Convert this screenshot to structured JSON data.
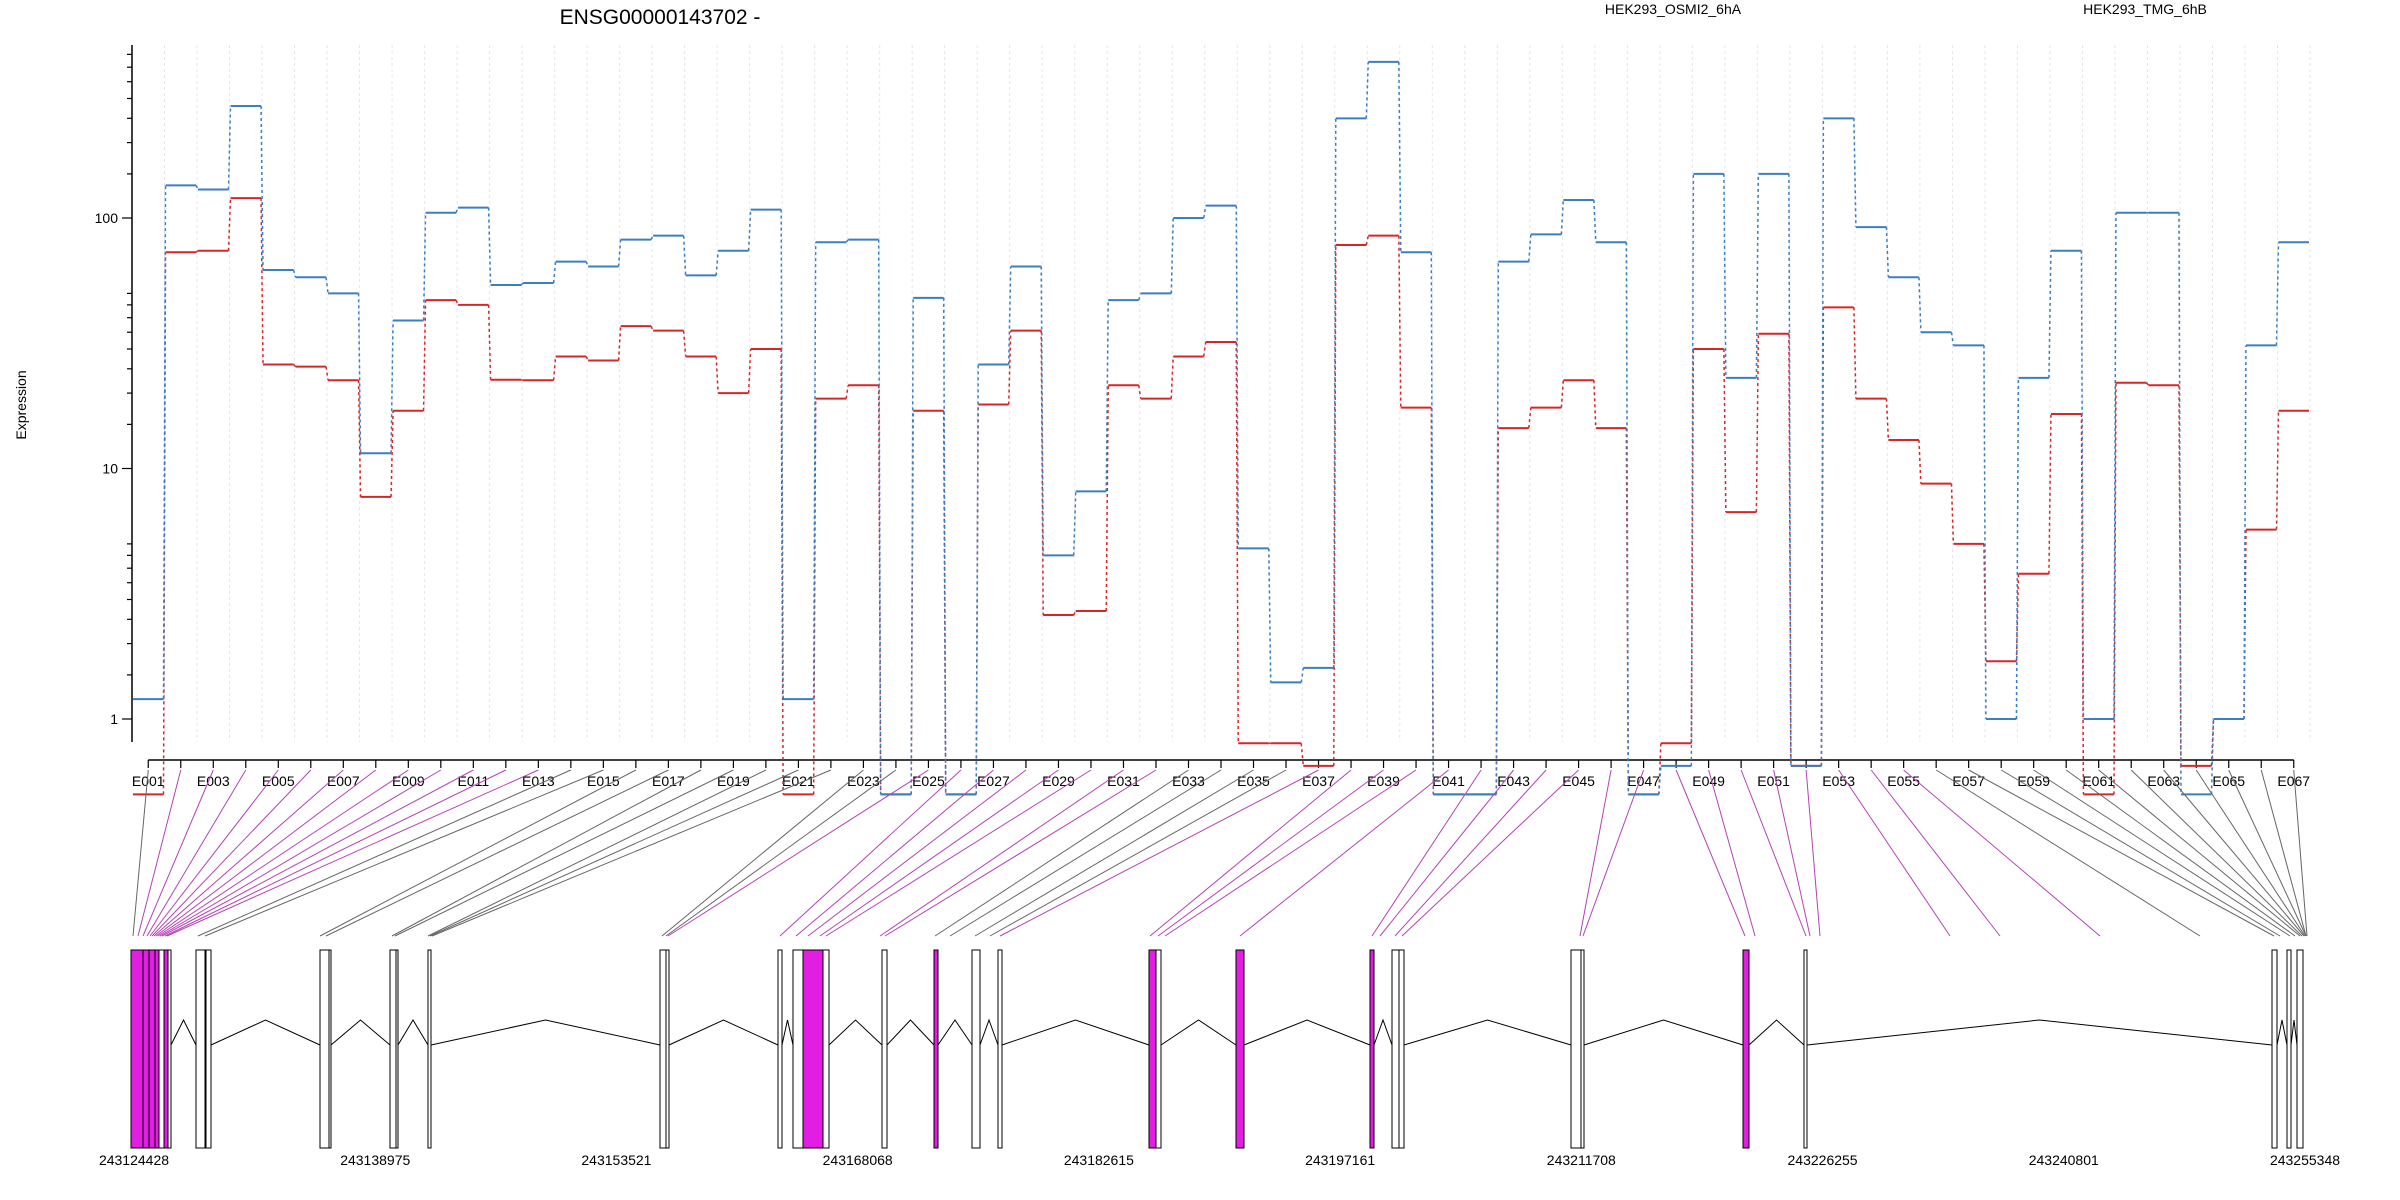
{
  "chart_data": {
    "type": "line",
    "title": "ENSG00000143702 -",
    "ylabel": "Expression",
    "y_scale": "log",
    "y_ticks": [
      "1",
      "10",
      "100"
    ],
    "colors": {
      "HEK293_OSMI2_6hA": "#d62728",
      "HEK293_TMG_6hB": "#3b7ec1",
      "highlight": "#e31ee3"
    },
    "legend": [
      {
        "name": "HEK293_OSMI2_6hA",
        "color": "#d62728"
      },
      {
        "name": "HEK293_TMG_6hB",
        "color": "#3b7ec1"
      }
    ],
    "x_tick_labels": [
      "E001",
      "E003",
      "E005",
      "E007",
      "E009",
      "E011",
      "E013",
      "E015",
      "E017",
      "E019",
      "E021",
      "E023",
      "E025",
      "E027",
      "E029",
      "E031",
      "E033",
      "E035",
      "E037",
      "E039",
      "E041",
      "E043",
      "E045",
      "E047",
      "E049",
      "E051",
      "E053",
      "E055",
      "E057",
      "E059",
      "E061",
      "E063",
      "E065",
      "E067"
    ],
    "series": [
      {
        "name": "HEK293_OSMI2_6hA",
        "values": [
          0.5,
          73,
          74,
          120,
          26,
          25.5,
          22.5,
          7.7,
          17,
          47,
          45,
          22.6,
          22.5,
          28,
          27,
          37,
          35.5,
          28,
          20,
          30,
          0.5,
          19,
          21.5,
          0.5,
          17,
          0.5,
          18,
          35.5,
          2.6,
          2.7,
          21.5,
          19,
          28,
          32,
          0.8,
          0.8,
          0.65,
          78,
          85,
          17.5,
          0.5,
          0.5,
          14.5,
          17.5,
          22.5,
          14.5,
          0.5,
          0.8,
          30,
          6.7,
          34.5,
          0.65,
          44,
          19,
          13,
          8.7,
          5,
          1.7,
          3.8,
          16.5,
          0.5,
          22,
          21.5,
          0.65,
          1,
          5.7,
          17
        ]
      },
      {
        "name": "HEK293_TMG_6hB",
        "values": [
          1.2,
          135,
          130,
          280,
          62,
          58,
          50,
          11.5,
          39,
          105,
          110,
          54,
          55,
          67,
          64,
          82,
          85,
          59,
          74,
          108,
          1.2,
          80,
          82,
          0.5,
          48,
          0.5,
          26,
          64,
          4.5,
          8.1,
          47,
          50,
          100,
          112,
          4.8,
          1.4,
          1.6,
          250,
          420,
          73,
          0.5,
          0.5,
          67,
          86,
          118,
          80,
          0.5,
          0.65,
          150,
          23,
          150,
          0.65,
          250,
          92,
          58,
          35,
          31,
          1,
          23,
          74,
          1,
          105,
          105,
          0.5,
          1,
          31,
          80
        ]
      }
    ],
    "genomic_coordinate_labels": [
      "243124428",
      "243138975",
      "243153521",
      "243168068",
      "243182615",
      "243197161",
      "243211708",
      "243226255",
      "243240801",
      "243255348"
    ],
    "genomic_range": [
      243124428,
      243255348
    ]
  }
}
